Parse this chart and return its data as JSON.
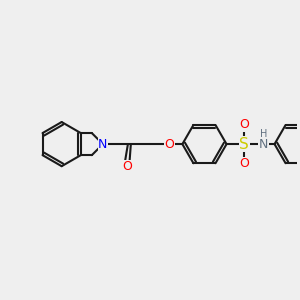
{
  "background_color": "#efefef",
  "figsize": [
    3.0,
    3.0
  ],
  "dpi": 100,
  "bond_color": "#1a1a1a",
  "bond_width": 1.5,
  "atom_colors": {
    "N_iso": "#0000ff",
    "O": "#ff0000",
    "S": "#cccc00",
    "N_sulf": "#607080",
    "H": "#607080"
  },
  "font_size": 9
}
